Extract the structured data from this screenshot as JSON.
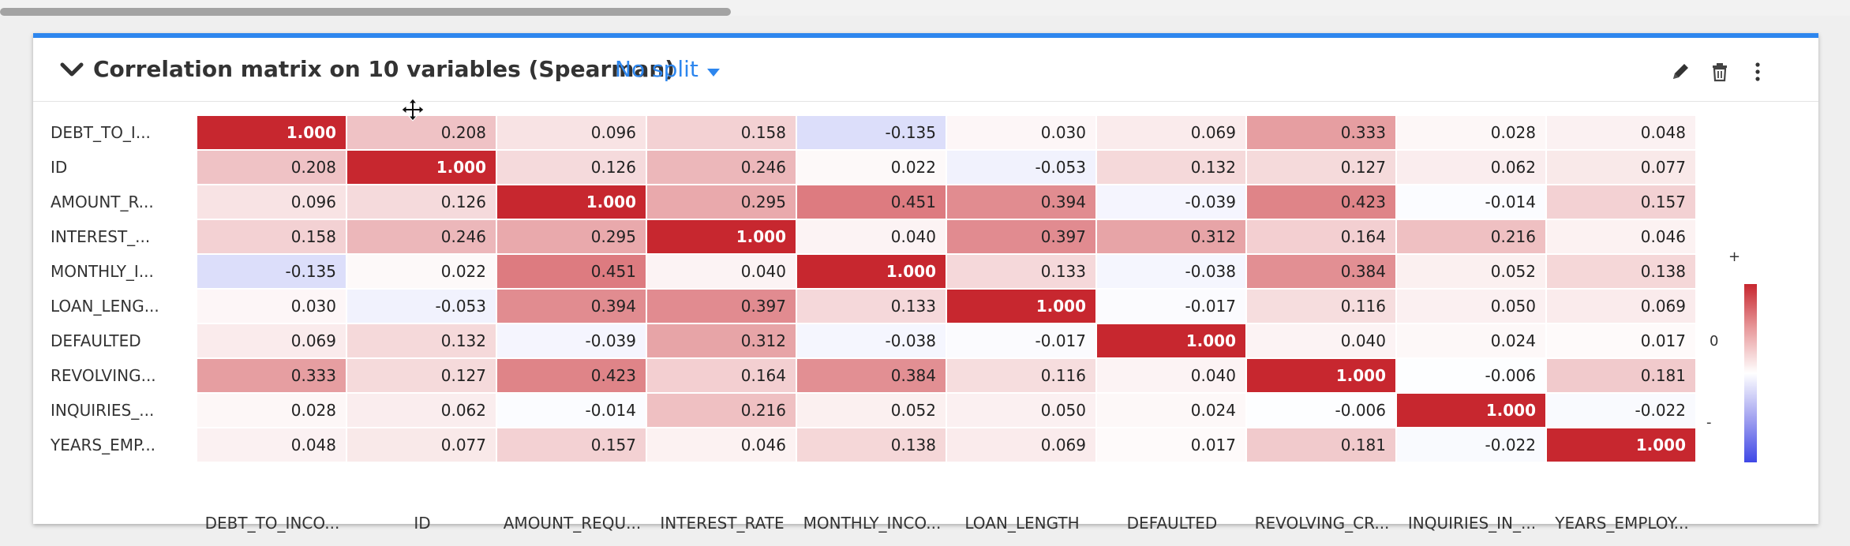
{
  "card": {
    "title": "Correlation matrix on 10 variables (Spearman)",
    "split_label": "No split",
    "accent_color": "#2d86ee"
  },
  "icons": [
    "chevron-down-icon",
    "pencil-icon",
    "trash-icon",
    "more-vertical-icon",
    "move-cursor-icon"
  ],
  "matrix": {
    "row_labels": [
      "DEBT_TO_I...",
      "ID",
      "AMOUNT_R...",
      "INTEREST_...",
      "MONTHLY_I...",
      "LOAN_LENG...",
      "DEFAULTED",
      "REVOLVING...",
      "INQUIRIES_...",
      "YEARS_EMP..."
    ],
    "col_labels": [
      "DEBT_TO_INCO...",
      "ID",
      "AMOUNT_REQU...",
      "INTEREST_RATE",
      "MONTHLY_INCO...",
      "LOAN_LENGTH",
      "DEFAULTED",
      "REVOLVING_CR...",
      "INQUIRIES_IN_...",
      "YEARS_EMPLOY..."
    ],
    "values": [
      [
        "1.000",
        "0.208",
        "0.096",
        "0.158",
        "-0.135",
        "0.030",
        "0.069",
        "0.333",
        "0.028",
        "0.048"
      ],
      [
        "0.208",
        "1.000",
        "0.126",
        "0.246",
        "0.022",
        "-0.053",
        "0.132",
        "0.127",
        "0.062",
        "0.077"
      ],
      [
        "0.096",
        "0.126",
        "1.000",
        "0.295",
        "0.451",
        "0.394",
        "-0.039",
        "0.423",
        "-0.014",
        "0.157"
      ],
      [
        "0.158",
        "0.246",
        "0.295",
        "1.000",
        "0.040",
        "0.397",
        "0.312",
        "0.164",
        "0.216",
        "0.046"
      ],
      [
        "-0.135",
        "0.022",
        "0.451",
        "0.040",
        "1.000",
        "0.133",
        "-0.038",
        "0.384",
        "0.052",
        "0.138"
      ],
      [
        "0.030",
        "-0.053",
        "0.394",
        "0.397",
        "0.133",
        "1.000",
        "-0.017",
        "0.116",
        "0.050",
        "0.069"
      ],
      [
        "0.069",
        "0.132",
        "-0.039",
        "0.312",
        "-0.038",
        "-0.017",
        "1.000",
        "0.040",
        "0.024",
        "0.017"
      ],
      [
        "0.333",
        "0.127",
        "0.423",
        "0.164",
        "0.384",
        "0.116",
        "0.040",
        "1.000",
        "-0.006",
        "0.181"
      ],
      [
        "0.028",
        "0.062",
        "-0.014",
        "0.216",
        "0.052",
        "0.050",
        "0.024",
        "-0.006",
        "1.000",
        "-0.022"
      ],
      [
        "0.048",
        "0.077",
        "0.157",
        "0.046",
        "0.138",
        "0.069",
        "0.017",
        "0.181",
        "-0.022",
        "1.000"
      ]
    ],
    "positive_color": "#c7272f",
    "negative_color": "#3f48e6"
  },
  "legend": {
    "plus": "+",
    "zero": "0",
    "minus": "-"
  }
}
